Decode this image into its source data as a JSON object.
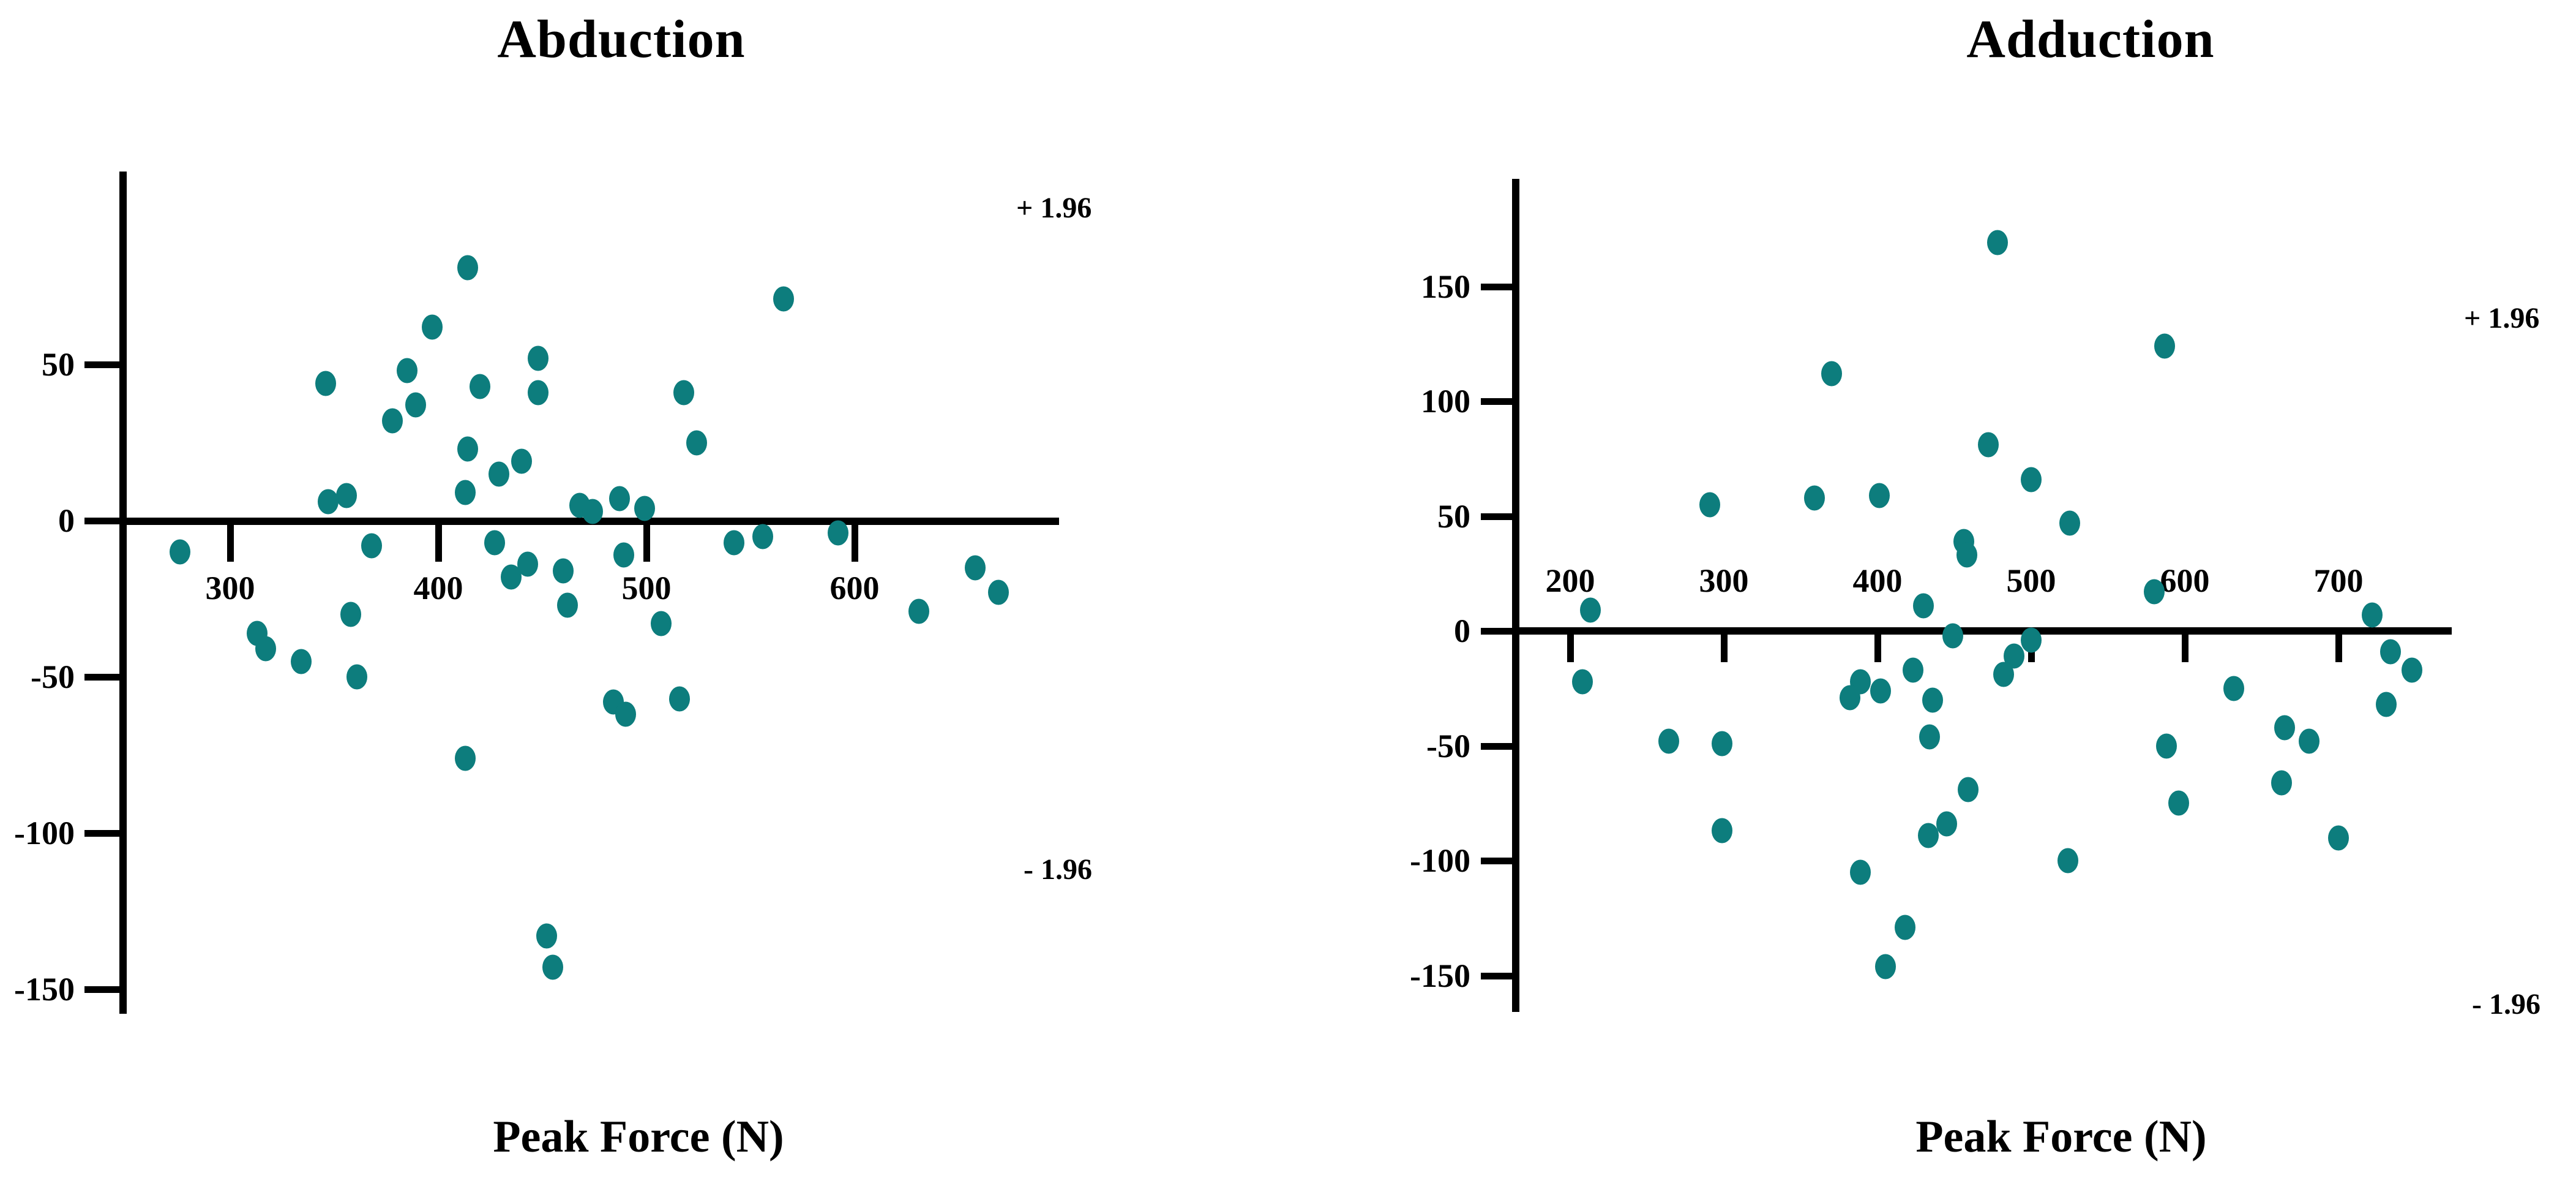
{
  "page": {
    "background": "#ffffff",
    "text_color": "#000000"
  },
  "chart_data": [
    {
      "type": "scatter",
      "title": "Abduction",
      "xlabel": "Peak Force (N)",
      "ylabel": "",
      "x_ticks": [
        300,
        400,
        500,
        600
      ],
      "y_ticks": [
        50,
        0,
        -50,
        -100,
        -150
      ],
      "xlim": [
        247,
        698
      ],
      "ylim": [
        -158,
        112
      ],
      "grid": false,
      "legend": "none",
      "mean_line": 0,
      "upper_loa": 85,
      "lower_loa": -97,
      "upper_loa_label": "+ 1.96",
      "lower_loa_label": "- 1.96",
      "marker_color": "#0d7d7d",
      "loa_color": "#ee0d0d",
      "axis_color": "#000000",
      "points": [
        [
          414,
          81
        ],
        [
          566,
          71
        ],
        [
          397,
          62
        ],
        [
          448,
          52
        ],
        [
          385,
          48
        ],
        [
          346,
          44
        ],
        [
          420,
          43
        ],
        [
          448,
          41
        ],
        [
          518,
          41
        ],
        [
          389,
          37
        ],
        [
          378,
          32
        ],
        [
          524,
          25
        ],
        [
          414,
          23
        ],
        [
          440,
          19
        ],
        [
          429,
          15
        ],
        [
          413,
          9
        ],
        [
          356,
          8
        ],
        [
          487,
          7
        ],
        [
          347,
          6
        ],
        [
          468,
          5
        ],
        [
          499,
          4
        ],
        [
          474,
          3
        ],
        [
          592,
          -4
        ],
        [
          556,
          -5
        ],
        [
          427,
          -7
        ],
        [
          542,
          -7
        ],
        [
          368,
          -8
        ],
        [
          276,
          -10
        ],
        [
          489,
          -11
        ],
        [
          443,
          -14
        ],
        [
          658,
          -15
        ],
        [
          460,
          -16
        ],
        [
          435,
          -18
        ],
        [
          669,
          -23
        ],
        [
          462,
          -27
        ],
        [
          631,
          -29
        ],
        [
          358,
          -30
        ],
        [
          507,
          -33
        ],
        [
          313,
          -36
        ],
        [
          317,
          -41
        ],
        [
          334,
          -45
        ],
        [
          361,
          -50
        ],
        [
          516,
          -57
        ],
        [
          484,
          -58
        ],
        [
          490,
          -62
        ],
        [
          413,
          -76
        ],
        [
          452,
          -133
        ],
        [
          455,
          -143
        ]
      ]
    },
    {
      "type": "scatter",
      "title": "Adduction",
      "xlabel": "Peak Force (N)",
      "ylabel": "",
      "x_ticks": [
        200,
        300,
        400,
        500,
        600,
        700
      ],
      "y_ticks": [
        150,
        100,
        50,
        0,
        -50,
        -100,
        -150
      ],
      "xlim": [
        165,
        774
      ],
      "ylim": [
        -165,
        197
      ],
      "grid": false,
      "legend": "none",
      "mean_line": 0,
      "upper_loa": 114,
      "lower_loa": -148,
      "upper_loa_label": "+ 1.96",
      "lower_loa_label": "- 1.96",
      "marker_color": "#0d7d7d",
      "loa_color": "#ee0d0d",
      "axis_color": "#000000",
      "points": [
        [
          478,
          169
        ],
        [
          587,
          124
        ],
        [
          370,
          112
        ],
        [
          472,
          81
        ],
        [
          500,
          66
        ],
        [
          401,
          59
        ],
        [
          359,
          58
        ],
        [
          291,
          55
        ],
        [
          525,
          47
        ],
        [
          456,
          39
        ],
        [
          458,
          33
        ],
        [
          580,
          17
        ],
        [
          430,
          11
        ],
        [
          213,
          9
        ],
        [
          722,
          7
        ],
        [
          449,
          -2
        ],
        [
          500,
          -4
        ],
        [
          734,
          -9
        ],
        [
          489,
          -11
        ],
        [
          423,
          -17
        ],
        [
          748,
          -17
        ],
        [
          482,
          -19
        ],
        [
          208,
          -22
        ],
        [
          389,
          -22
        ],
        [
          632,
          -25
        ],
        [
          402,
          -26
        ],
        [
          382,
          -29
        ],
        [
          436,
          -30
        ],
        [
          731,
          -32
        ],
        [
          665,
          -42
        ],
        [
          434,
          -46
        ],
        [
          264,
          -48
        ],
        [
          681,
          -48
        ],
        [
          299,
          -49
        ],
        [
          588,
          -50
        ],
        [
          663,
          -66
        ],
        [
          459,
          -69
        ],
        [
          596,
          -75
        ],
        [
          299,
          -87
        ],
        [
          445,
          -84
        ],
        [
          433,
          -89
        ],
        [
          700,
          -90
        ],
        [
          524,
          -100
        ],
        [
          389,
          -105
        ],
        [
          418,
          -129
        ],
        [
          405,
          -146
        ]
      ]
    }
  ]
}
